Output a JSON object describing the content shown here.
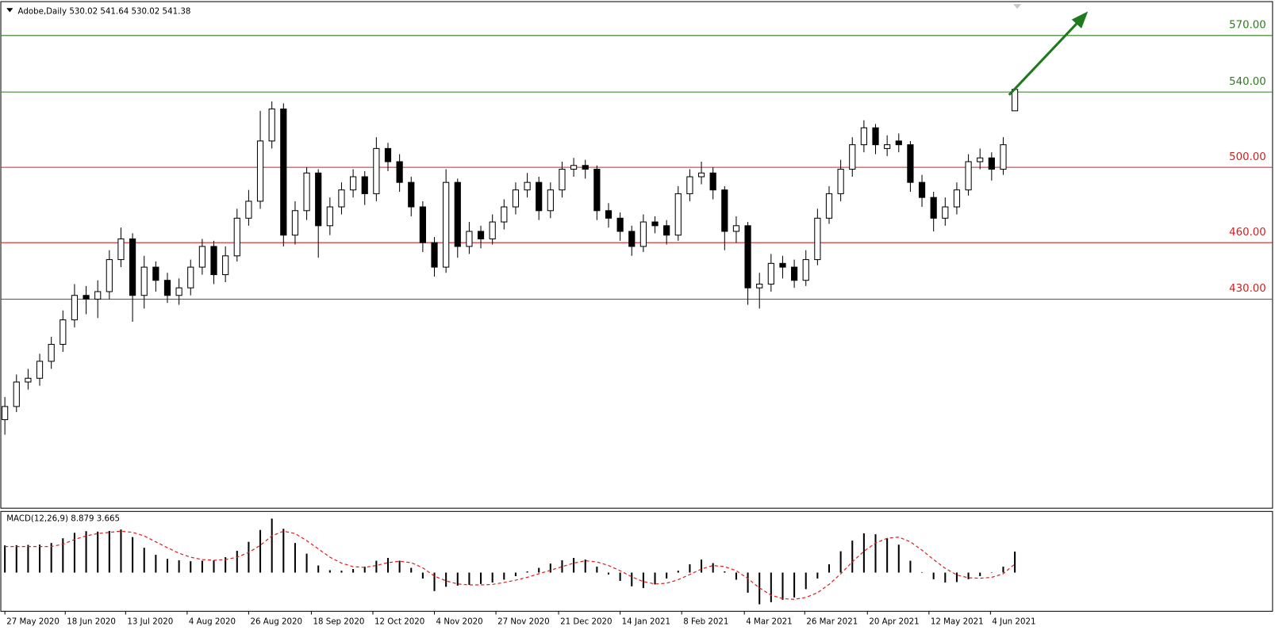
{
  "chart_data": [
    {
      "type": "candlestick",
      "title": "Adobe,Daily 530.02 541.64 530.02 541.38",
      "open": [
        366,
        373,
        386,
        388,
        397,
        406,
        419,
        432,
        430,
        434,
        451,
        462,
        432,
        447,
        440,
        432,
        436,
        447,
        458,
        443,
        453,
        473,
        482,
        514,
        531,
        464,
        477,
        497,
        469,
        479,
        488,
        495,
        486,
        510,
        503,
        492,
        479,
        460,
        447,
        492,
        458,
        466,
        462,
        471,
        479,
        488,
        492,
        477,
        488,
        499,
        501,
        499,
        477,
        473,
        466,
        458,
        471,
        469,
        464,
        486,
        495,
        497,
        488,
        466,
        469,
        436,
        438,
        449,
        447,
        440,
        451,
        473,
        486,
        499,
        512,
        521,
        510,
        514,
        512,
        492,
        484,
        473,
        479,
        488,
        503,
        505,
        499,
        530.02
      ],
      "high": [
        378,
        390,
        393,
        401,
        410,
        424,
        438,
        437,
        440,
        456,
        468,
        465,
        453,
        450,
        444,
        441,
        451,
        462,
        461,
        458,
        478,
        488,
        530,
        535,
        534,
        482,
        500,
        499,
        484,
        492,
        499,
        498,
        516,
        513,
        507,
        495,
        482,
        463,
        499,
        494,
        471,
        469,
        475,
        483,
        492,
        497,
        495,
        492,
        503,
        505,
        504,
        501,
        481,
        476,
        469,
        475,
        474,
        472,
        490,
        499,
        503,
        500,
        490,
        474,
        471,
        444,
        454,
        453,
        451,
        456,
        478,
        490,
        504,
        516,
        525,
        523,
        517,
        518,
        514,
        496,
        487,
        484,
        492,
        507,
        510,
        508,
        516,
        541.64
      ],
      "low": [
        358,
        370,
        382,
        384,
        393,
        402,
        415,
        422,
        420,
        430,
        447,
        418,
        425,
        434,
        428,
        427,
        432,
        443,
        438,
        439,
        450,
        469,
        478,
        510,
        458,
        459,
        472,
        452,
        464,
        475,
        484,
        480,
        482,
        498,
        487,
        474,
        455,
        442,
        444,
        452,
        454,
        457,
        459,
        467,
        475,
        484,
        472,
        473,
        484,
        495,
        494,
        472,
        468,
        461,
        453,
        455,
        465,
        459,
        461,
        482,
        491,
        483,
        456,
        460,
        427,
        425,
        434,
        441,
        436,
        437,
        448,
        470,
        482,
        495,
        508,
        507,
        506,
        508,
        487,
        479,
        466,
        469,
        475,
        485,
        499,
        493,
        496,
        530.02
      ],
      "close": [
        373,
        386,
        388,
        397,
        406,
        419,
        432,
        430,
        434,
        451,
        462,
        432,
        447,
        440,
        432,
        436,
        447,
        458,
        443,
        453,
        473,
        482,
        514,
        531,
        464,
        477,
        497,
        469,
        479,
        488,
        495,
        486,
        510,
        503,
        492,
        479,
        460,
        447,
        492,
        458,
        466,
        462,
        471,
        479,
        488,
        492,
        477,
        488,
        499,
        501,
        499,
        477,
        473,
        466,
        458,
        471,
        469,
        464,
        486,
        495,
        497,
        488,
        466,
        469,
        436,
        438,
        449,
        447,
        440,
        451,
        473,
        486,
        499,
        512,
        521,
        512,
        512,
        512,
        492,
        484,
        473,
        479,
        488,
        503,
        505,
        499,
        512,
        541.38
      ],
      "up_color": "#ffffff",
      "down_color": "#000000",
      "ylim": [
        319,
        588
      ],
      "xlim": [
        -0.35,
        109.2
      ],
      "levels": [
        {
          "value": 570,
          "label": "570.00",
          "color": "#2e7d1e"
        },
        {
          "value": 540,
          "label": "540.00",
          "color": "#2e7d1e"
        },
        {
          "value": 500,
          "label": "500.00",
          "color": "#d42020"
        },
        {
          "value": 460,
          "label": "460.00",
          "color": "#d42020"
        },
        {
          "value": 430,
          "label": "430.00",
          "color": "#d42020"
        }
      ],
      "xticks": [
        {
          "value": 0,
          "label": "27 May 2020"
        },
        {
          "value": 5.2,
          "label": "18 Jun 2020"
        },
        {
          "value": 10.4,
          "label": "13 Jul 2020"
        },
        {
          "value": 15.7,
          "label": "4 Aug 2020"
        },
        {
          "value": 21,
          "label": "26 Aug 2020"
        },
        {
          "value": 26.4,
          "label": "18 Sep 2020"
        },
        {
          "value": 31.7,
          "label": "12 Oct 2020"
        },
        {
          "value": 37,
          "label": "4 Nov 2020"
        },
        {
          "value": 42.3,
          "label": "27 Nov 2020"
        },
        {
          "value": 47.7,
          "label": "21 Dec 2020"
        },
        {
          "value": 53,
          "label": "14 Jan 2021"
        },
        {
          "value": 58.3,
          "label": "8 Feb 2021"
        },
        {
          "value": 63.7,
          "label": "4 Mar 2021"
        },
        {
          "value": 68.9,
          "label": "26 Mar 2021"
        },
        {
          "value": 74.3,
          "label": "20 Apr 2021"
        },
        {
          "value": 79.6,
          "label": "12 May 2021"
        },
        {
          "value": 84.9,
          "label": "4 Jun 2021"
        }
      ]
    },
    {
      "type": "macd",
      "title": "MACD(12,26,9) 8.879 3.665",
      "ylim": [
        -16,
        25.5
      ],
      "histogram": {
        "color": "#000000",
        "values": [
          11.5,
          11.6,
          11.7,
          11.8,
          12.5,
          14.5,
          16.8,
          17.5,
          17.3,
          17.6,
          18.2,
          15,
          10.5,
          7.5,
          5.8,
          5.2,
          4.8,
          5,
          5.2,
          6.5,
          9.2,
          13,
          18,
          22.8,
          18.5,
          12.5,
          8,
          3,
          1,
          0.8,
          1.5,
          2.5,
          5,
          6.2,
          5,
          2,
          -2.5,
          -7.8,
          -6,
          -5.5,
          -5.2,
          -4.8,
          -4.2,
          -3,
          -1.5,
          0.5,
          2,
          3.8,
          5.2,
          6.2,
          5.5,
          2.5,
          -0.8,
          -3.5,
          -5.8,
          -6.5,
          -5,
          -2.5,
          0.8,
          3.5,
          5.5,
          4,
          0.5,
          -3,
          -8.5,
          -13.4,
          -12.5,
          -11.5,
          -10.5,
          -7,
          -2.5,
          3.5,
          9,
          13.5,
          16.6,
          16.2,
          14.5,
          11.8,
          5,
          0.2,
          -2.8,
          -4.2,
          -4,
          -2.8,
          -1.5,
          0,
          2.5,
          8.879
        ]
      },
      "signal": {
        "color": "#e02020",
        "values": [
          11,
          11,
          11,
          11,
          11,
          12,
          14,
          15.5,
          16.5,
          17,
          17.5,
          17,
          15.5,
          13,
          10.5,
          8.2,
          6.5,
          5.5,
          5.2,
          5.5,
          6.5,
          8.5,
          11.5,
          15.5,
          17.5,
          16.5,
          13.5,
          10,
          6.5,
          4,
          2.5,
          2.2,
          3,
          4.2,
          4.8,
          4.2,
          2,
          -1.5,
          -3.5,
          -4.8,
          -5.2,
          -5.2,
          -5,
          -4.2,
          -3.2,
          -2,
          -0.5,
          1,
          2.5,
          4,
          5,
          4.5,
          3,
          0.8,
          -1.8,
          -3.8,
          -4.8,
          -4.5,
          -3,
          -0.8,
          1.5,
          3,
          2.5,
          0.8,
          -2.5,
          -6.5,
          -9.5,
          -11,
          -11.3,
          -10.5,
          -8.5,
          -5,
          -0.5,
          4.5,
          9,
          12.5,
          14.5,
          15,
          13,
          9.5,
          5.5,
          1.8,
          -1,
          -2.2,
          -2.4,
          -2,
          -0.5,
          3.665
        ]
      }
    }
  ]
}
